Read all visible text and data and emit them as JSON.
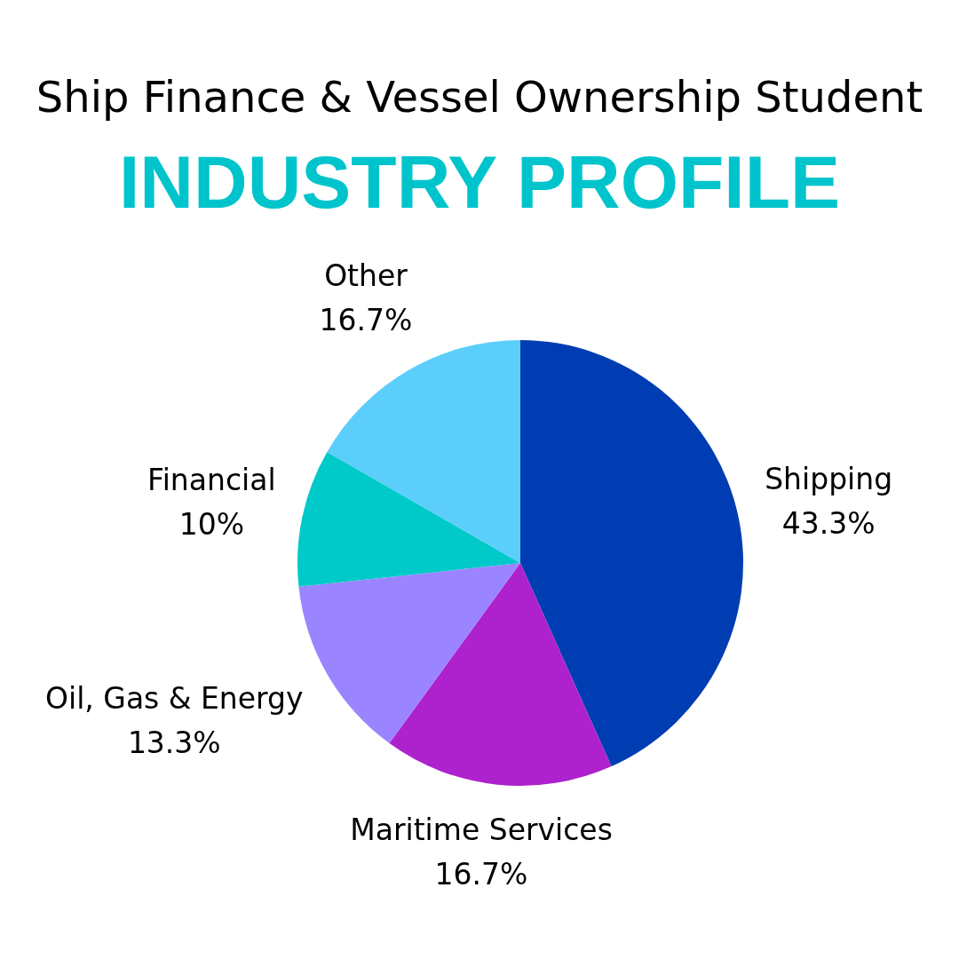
{
  "chart_data": {
    "type": "pie",
    "title": "Ship Finance & Vessel Ownership Student",
    "subtitle": "INDUSTRY PROFILE",
    "categories": [
      "Shipping",
      "Maritime Services",
      "Oil, Gas & Energy",
      "Financial",
      "Other"
    ],
    "values": [
      43.3,
      16.7,
      13.3,
      10,
      16.7
    ],
    "value_labels": [
      "43.3%",
      "16.7%",
      "13.3%",
      "10%",
      "16.7%"
    ],
    "colors": [
      "#003db3",
      "#ad22cc",
      "#9b84ff",
      "#00c9c9",
      "#5ccefc"
    ],
    "legend": false
  }
}
